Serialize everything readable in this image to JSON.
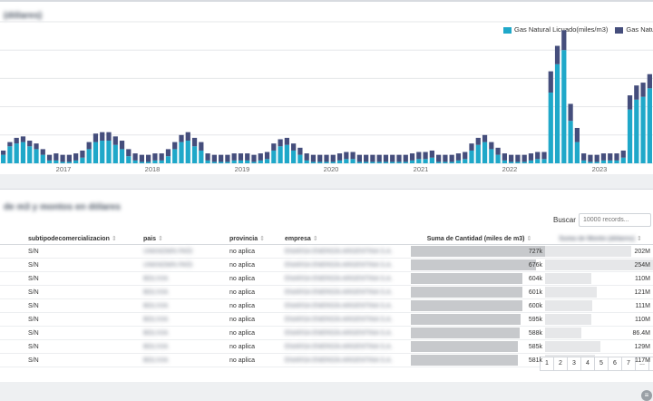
{
  "chart": {
    "title": "(dólares)",
    "legend": [
      {
        "label": "Gas Natural Licuado(miles/m3)",
        "color": "#1fa8c9"
      },
      {
        "label": "Gas Natural(m",
        "color": "#454e7c"
      }
    ]
  },
  "chart_data": {
    "type": "bar",
    "stacked": true,
    "x_tick_labels": [
      "2017",
      "2018",
      "2019",
      "2020",
      "2021",
      "2022",
      "2023"
    ],
    "series": [
      {
        "name": "Gas Natural Licuado(miles/m3)",
        "color": "#1fa8c9",
        "values": [
          6,
          12,
          14,
          15,
          12,
          10,
          6,
          2,
          2,
          1,
          1,
          2,
          4,
          10,
          15,
          16,
          16,
          13,
          10,
          5,
          2,
          1,
          1,
          2,
          2,
          5,
          10,
          15,
          16,
          12,
          9,
          2,
          1,
          1,
          1,
          2,
          2,
          2,
          1,
          2,
          3,
          9,
          12,
          13,
          9,
          6,
          2,
          1,
          1,
          1,
          1,
          2,
          3,
          3,
          1,
          1,
          1,
          1,
          1,
          1,
          1,
          1,
          2,
          3,
          3,
          4,
          1,
          1,
          1,
          2,
          3,
          9,
          13,
          15,
          10,
          6,
          2,
          1,
          1,
          1,
          2,
          3,
          3,
          50,
          70,
          80,
          30,
          15,
          2,
          1,
          1,
          2,
          2,
          2,
          4,
          38,
          45,
          47,
          53
        ]
      },
      {
        "name": "Gas Natural(m",
        "color": "#454e7c",
        "values": [
          3,
          3,
          4,
          4,
          4,
          4,
          4,
          4,
          5,
          5,
          5,
          5,
          5,
          5,
          6,
          6,
          6,
          6,
          6,
          5,
          5,
          5,
          5,
          5,
          5,
          5,
          5,
          5,
          6,
          6,
          6,
          5,
          5,
          5,
          5,
          5,
          5,
          5,
          5,
          5,
          5,
          5,
          5,
          5,
          5,
          5,
          5,
          5,
          5,
          5,
          5,
          5,
          5,
          5,
          5,
          5,
          5,
          5,
          5,
          5,
          5,
          5,
          5,
          5,
          5,
          5,
          5,
          5,
          5,
          5,
          5,
          5,
          5,
          5,
          5,
          5,
          5,
          5,
          5,
          5,
          5,
          5,
          5,
          15,
          13,
          14,
          12,
          10,
          5,
          5,
          5,
          5,
          5,
          5,
          5,
          10,
          10,
          10,
          10
        ]
      }
    ],
    "ylim": [
      0,
      100
    ],
    "grid": true,
    "legend_position": "top-right"
  },
  "table_section": {
    "title": "de m3 y montos en dólares",
    "search_label": "Buscar",
    "search_placeholder": "10000 records...",
    "filter_icon": "filter-icon",
    "columns": [
      "",
      "subtipodecomercializacion",
      "pais",
      "provincia",
      "empresa",
      "Suma de Cantidad (miles de m3)",
      "Suma de Monto (dólares)"
    ],
    "rows": [
      {
        "col0": "",
        "sub": "S/N",
        "pais": "UNKNOWN PAÍS",
        "prov": "no aplica",
        "emp": "ENARSA ENERGÍA ARGENTINA S.A.",
        "qty": "727k",
        "qty_frac": 1.0,
        "amt": "202M",
        "amt_frac": 0.8
      },
      {
        "col0": "",
        "sub": "S/N",
        "pais": "UNKNOWN PAÍS",
        "prov": "no aplica",
        "emp": "ENARSA ENERGÍA ARGENTINA S.A.",
        "qty": "676k",
        "qty_frac": 0.93,
        "amt": "254M",
        "amt_frac": 1.0
      },
      {
        "col0": "",
        "sub": "S/N",
        "pais": "BOLIVIA",
        "prov": "no aplica",
        "emp": "ENARSA ENERGÍA ARGENTINA S.A.",
        "qty": "604k",
        "qty_frac": 0.83,
        "amt": "110M",
        "amt_frac": 0.43
      },
      {
        "col0": "",
        "sub": "S/N",
        "pais": "BOLIVIA",
        "prov": "no aplica",
        "emp": "ENARSA ENERGÍA ARGENTINA S.A.",
        "qty": "601k",
        "qty_frac": 0.83,
        "amt": "121M",
        "amt_frac": 0.48
      },
      {
        "col0": "",
        "sub": "S/N",
        "pais": "BOLIVIA",
        "prov": "no aplica",
        "emp": "ENARSA ENERGÍA ARGENTINA S.A.",
        "qty": "600k",
        "qty_frac": 0.83,
        "amt": "111M",
        "amt_frac": 0.44
      },
      {
        "col0": "",
        "sub": "S/N",
        "pais": "BOLIVIA",
        "prov": "no aplica",
        "emp": "ENARSA ENERGÍA ARGENTINA S.A.",
        "qty": "595k",
        "qty_frac": 0.82,
        "amt": "110M",
        "amt_frac": 0.43
      },
      {
        "col0": "",
        "sub": "S/N",
        "pais": "BOLIVIA",
        "prov": "no aplica",
        "emp": "ENARSA ENERGÍA ARGENTINA S.A.",
        "qty": "588k",
        "qty_frac": 0.81,
        "amt": "86.4M",
        "amt_frac": 0.34
      },
      {
        "col0": "",
        "sub": "S/N",
        "pais": "BOLIVIA",
        "prov": "no aplica",
        "emp": "ENARSA ENERGÍA ARGENTINA S.A.",
        "qty": "585k",
        "qty_frac": 0.8,
        "amt": "129M",
        "amt_frac": 0.51
      },
      {
        "col0": "",
        "sub": "S/N",
        "pais": "BOLIVIA",
        "prov": "no aplica",
        "emp": "ENARSA ENERGÍA ARGENTINA S.A.",
        "qty": "581k",
        "qty_frac": 0.8,
        "amt": "117M",
        "amt_frac": 0.46
      }
    ],
    "pagination": [
      "1",
      "2",
      "3",
      "4",
      "5",
      "6",
      "7",
      "...",
      "5"
    ]
  }
}
